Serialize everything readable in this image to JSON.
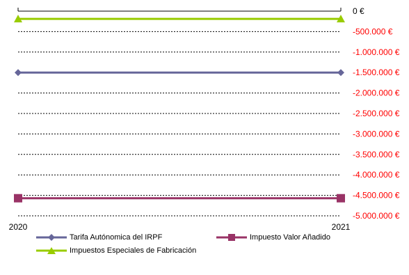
{
  "chart_data": {
    "type": "line",
    "x": [
      "2020",
      "2021"
    ],
    "series": [
      {
        "name": "Tarifa Autónomica del IRPF",
        "values": [
          -1500000,
          -1500000
        ],
        "color": "#666699",
        "marker": "diamond"
      },
      {
        "name": "Impuesto Valor Añadido",
        "values": [
          -4570000,
          -4570000
        ],
        "color": "#993366",
        "marker": "square"
      },
      {
        "name": "Impuestos Especiales de Fabricación",
        "values": [
          -190000,
          -190000
        ],
        "color": "#99cc00",
        "marker": "triangle"
      }
    ],
    "ylim": [
      -5000000,
      0
    ],
    "ytick_labels": [
      "0 €",
      "-500.000 €",
      "-1.000.000 €",
      "-1.500.000 €",
      "-2.000.000 €",
      "-2.500.000 €",
      "-3.000.000 €",
      "-3.500.000 €",
      "-4.000.000 €",
      "-4.500.000 €",
      "-5.000.000 €"
    ],
    "negative_color": "#ff0000",
    "grid": "dotted",
    "legend": "bottom"
  }
}
